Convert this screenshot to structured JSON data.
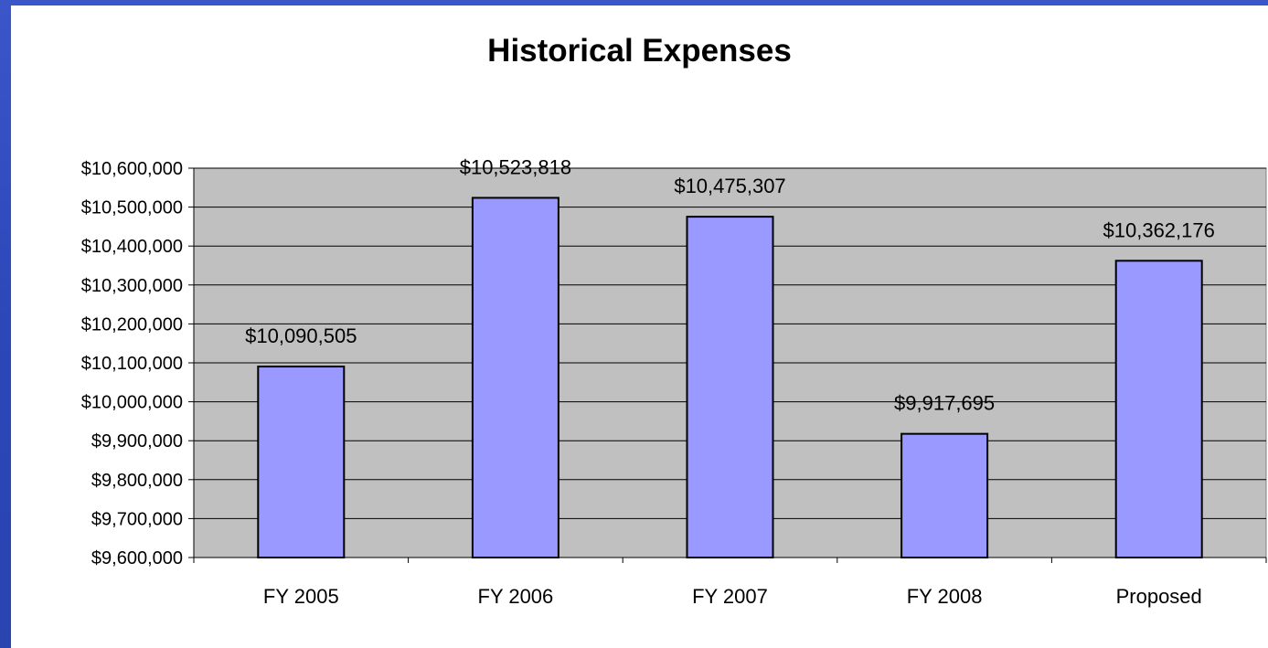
{
  "chart_data": {
    "type": "bar",
    "title": "Historical Expenses",
    "categories": [
      "FY 2005",
      "FY 2006",
      "FY 2007",
      "FY 2008",
      "Proposed"
    ],
    "values": [
      10090505,
      10523818,
      10475307,
      9917695,
      10362176
    ],
    "data_labels": [
      "$10,090,505",
      "$10,523,818",
      "$10,475,307",
      "$9,917,695",
      "$10,362,176"
    ],
    "ylim": [
      9600000,
      10600000
    ],
    "yticks": [
      9600000,
      9700000,
      9800000,
      9900000,
      10000000,
      10100000,
      10200000,
      10300000,
      10400000,
      10500000,
      10600000
    ],
    "ytick_labels": [
      "$9,600,000",
      "$9,700,000",
      "$9,800,000",
      "$9,900,000",
      "$10,000,000",
      "$10,100,000",
      "$10,200,000",
      "$10,300,000",
      "$10,400,000",
      "$10,500,000",
      "$10,600,000"
    ],
    "grid": true,
    "legend": "none",
    "colors": {
      "bar_fill": "#9999ff",
      "bar_stroke": "#000000",
      "plot_background": "#c0c0c0",
      "gridline": "#000000",
      "frame_background": "#2b47b8"
    }
  }
}
